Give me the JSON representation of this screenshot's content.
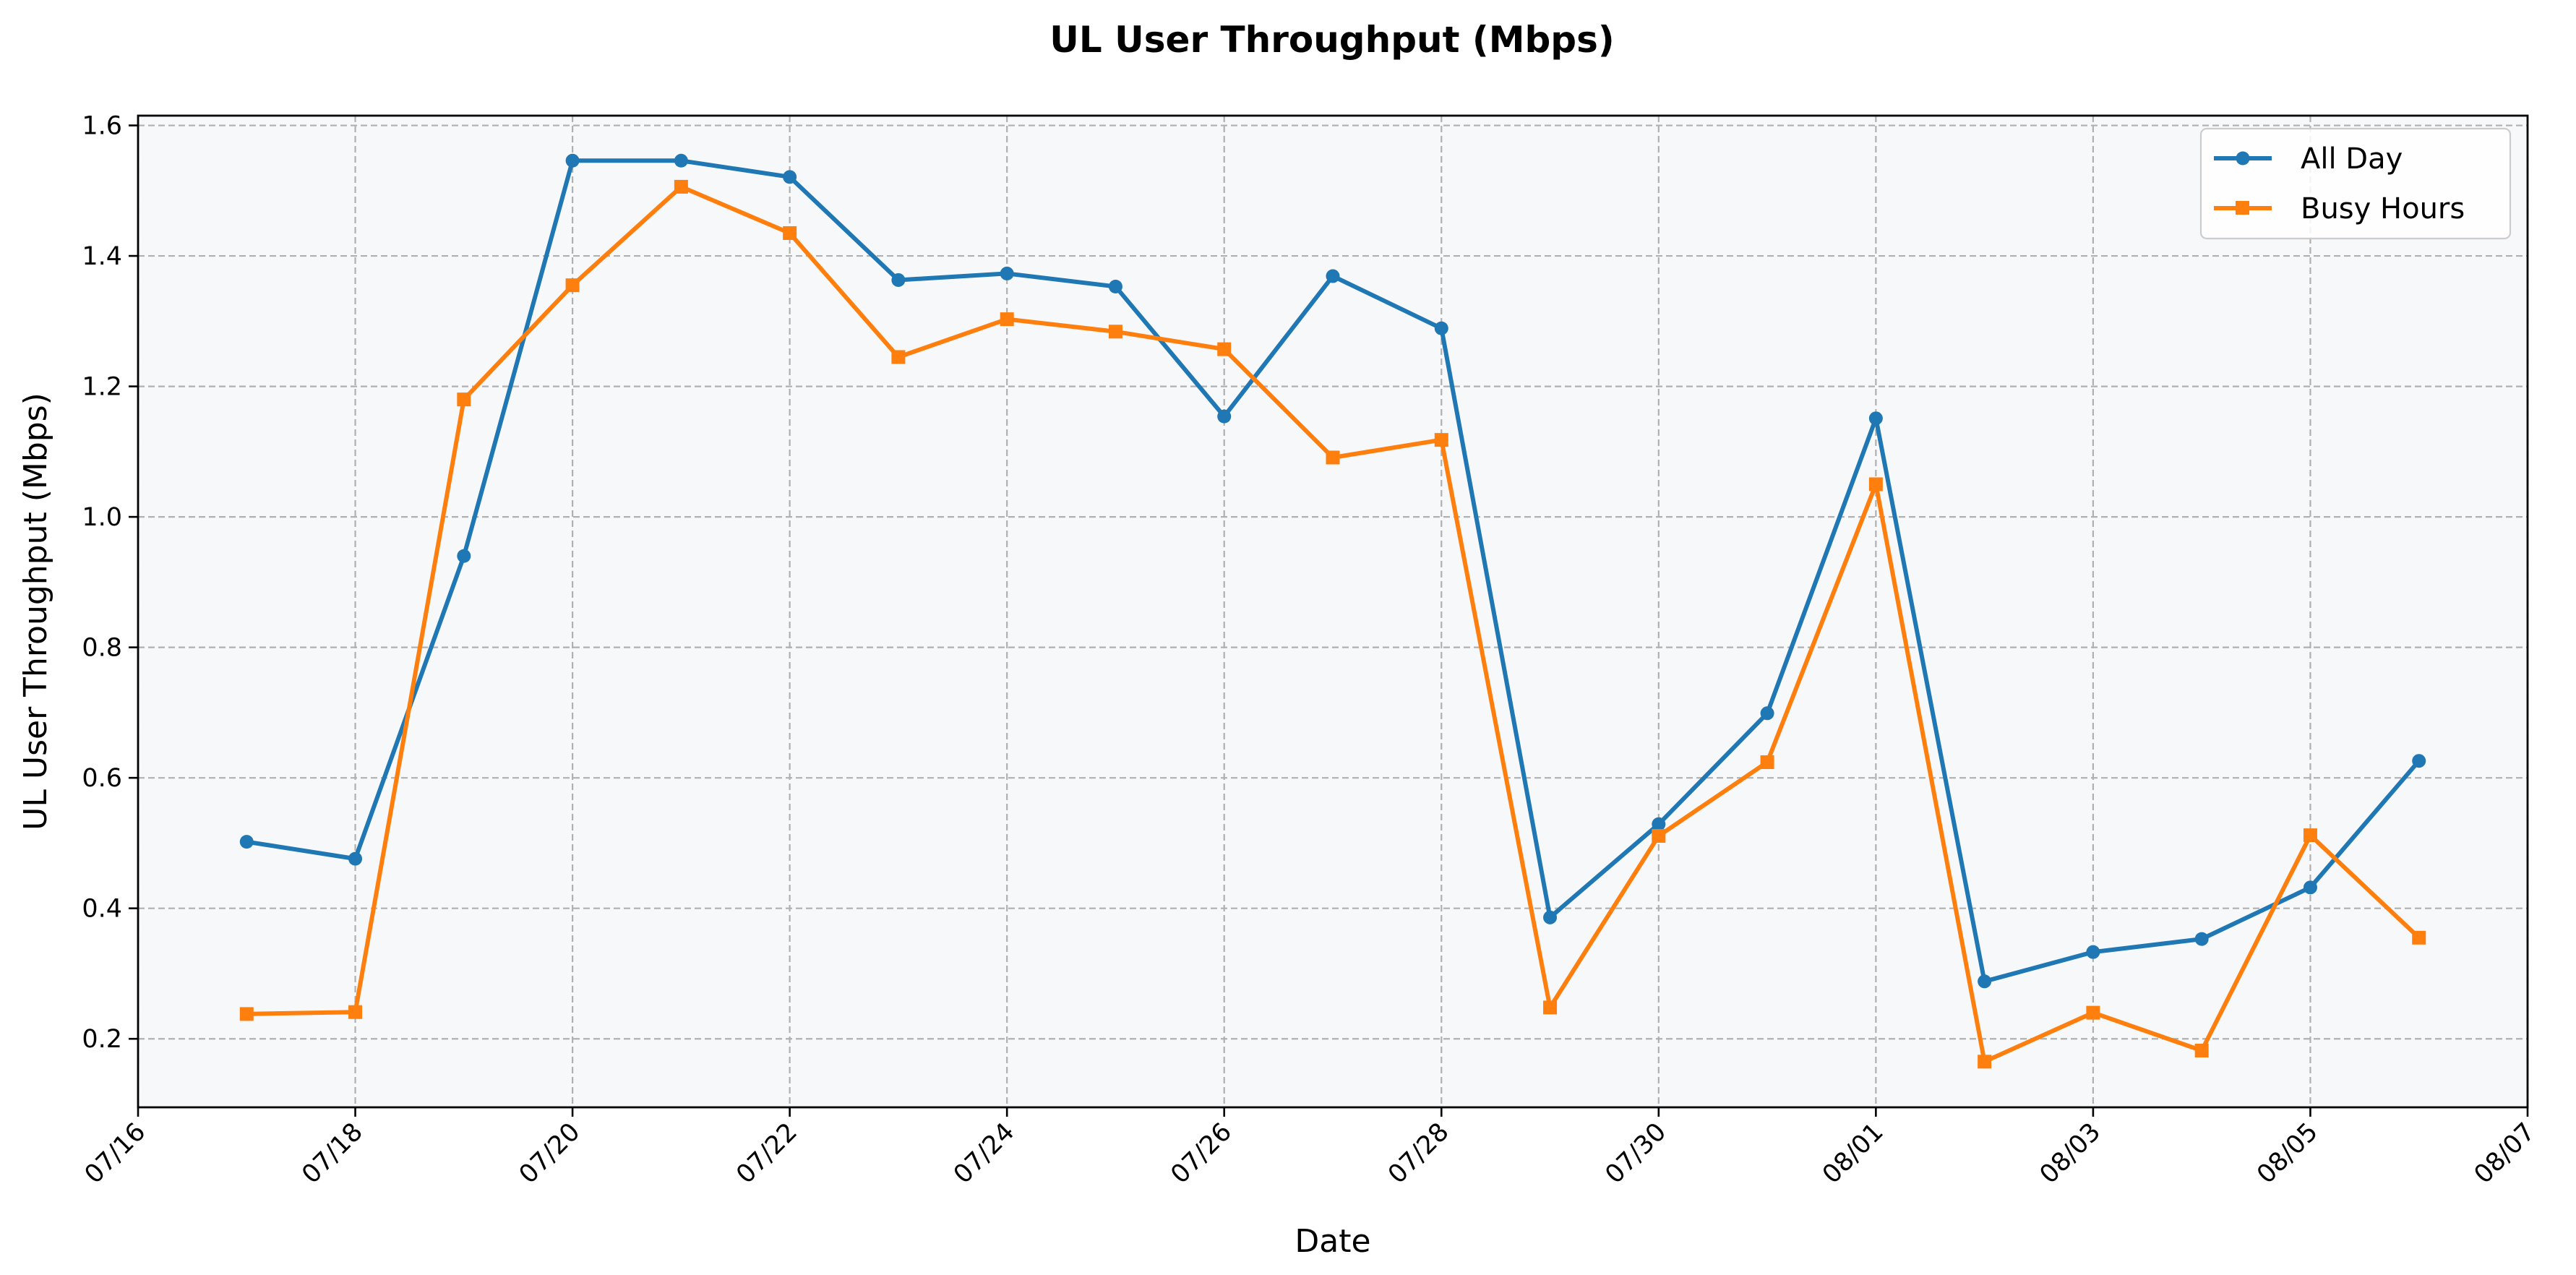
{
  "chart_data": {
    "type": "line",
    "title": "UL User Throughput (Mbps)",
    "xlabel": "Date",
    "ylabel": "UL User Throughput (Mbps)",
    "x": [
      "07/17",
      "07/18",
      "07/19",
      "07/20",
      "07/21",
      "07/22",
      "07/23",
      "07/24",
      "07/25",
      "07/26",
      "07/27",
      "07/28",
      "07/29",
      "07/30",
      "07/31",
      "08/01",
      "08/02",
      "08/03",
      "08/04",
      "08/05",
      "08/06"
    ],
    "x_ticks": [
      "07/16",
      "07/18",
      "07/20",
      "07/22",
      "07/24",
      "07/26",
      "07/28",
      "07/30",
      "08/01",
      "08/03",
      "08/05",
      "08/07"
    ],
    "xlim": [
      "07/16",
      "08/07"
    ],
    "y_ticks": [
      0.2,
      0.4,
      0.6,
      0.8,
      1.0,
      1.2,
      1.4,
      1.6
    ],
    "y_tick_labels": [
      "0.2",
      "0.4",
      "0.6",
      "0.8",
      "1.0",
      "1.2",
      "1.4",
      "1.6"
    ],
    "ylim": [
      0.095,
      1.615
    ],
    "grid": true,
    "legend_position": "top-right",
    "plot_background": "#f7f8fa",
    "series": [
      {
        "name": "All Day",
        "color": "#1f77b4",
        "marker": "circle",
        "values": [
          0.502,
          0.476,
          0.94,
          1.546,
          1.546,
          1.521,
          1.363,
          1.373,
          1.353,
          1.154,
          1.369,
          1.289,
          0.386,
          0.529,
          0.699,
          1.151,
          0.288,
          0.333,
          0.353,
          0.432,
          0.626
        ]
      },
      {
        "name": "Busy Hours",
        "color": "#ff7f0e",
        "marker": "square",
        "values": [
          0.238,
          0.241,
          1.18,
          1.355,
          1.506,
          1.435,
          1.245,
          1.303,
          1.284,
          1.257,
          1.091,
          1.118,
          0.248,
          0.511,
          0.624,
          1.05,
          0.165,
          0.24,
          0.182,
          0.512,
          0.355
        ]
      }
    ]
  }
}
